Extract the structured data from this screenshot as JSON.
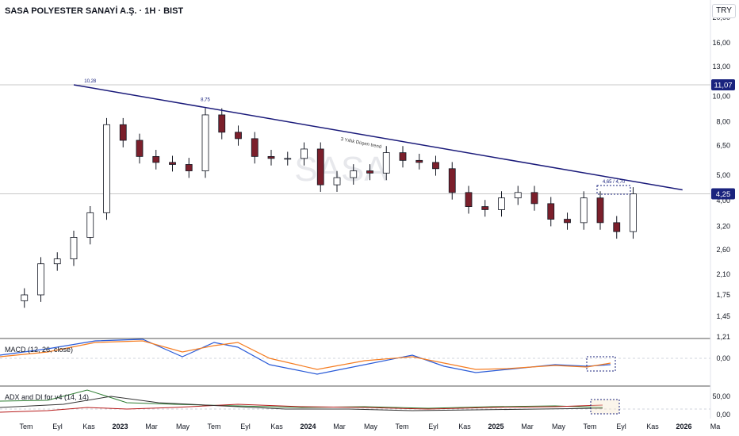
{
  "header": {
    "title": "SASA POLYESTER SANAYİ A.Ş. · 1H · BIST",
    "currency": "TRY"
  },
  "price_axis": {
    "ticks": [
      "20,00",
      "16,00",
      "13,00",
      "10,00",
      "8,00",
      "6,50",
      "5,00",
      "4,00",
      "3,20",
      "2,60",
      "2,10",
      "1,75",
      "1,45",
      "1,21"
    ],
    "marker_last": "4,25",
    "marker_upper": "11,07"
  },
  "time_axis": [
    "Tem",
    "Eyl",
    "Kas",
    "2023",
    "Mar",
    "May",
    "Tem",
    "Eyl",
    "Kas",
    "2024",
    "Mar",
    "May",
    "Tem",
    "Eyl",
    "Kas",
    "2025",
    "Mar",
    "May",
    "Tem",
    "Eyl",
    "Kas",
    "2026",
    "Ma"
  ],
  "annotations": {
    "peak1": "10,28",
    "peak2": "8,75",
    "trend_label": "3 Yıllık Düşen trend",
    "target_box": "4,65 / 4,70",
    "watermark": "SASA"
  },
  "macd": {
    "label": "MACD (12, 26, close)",
    "zero": "0,00"
  },
  "adx": {
    "label": "ADX and DI for v4 (14, 14)",
    "top": "50,00",
    "zero": "0,00"
  },
  "colors": {
    "up": "#ffffff",
    "down": "#7b1f2b",
    "trend": "#1a1a7a",
    "macd": "#2a5bd7",
    "signal": "#f57c20",
    "adx_plus": "#2e7d32",
    "adx_minus": "#b71c1c",
    "adx": "#333333"
  },
  "chart_data": {
    "type": "candlestick",
    "title": "SASA POLYESTER SANAYİ A.Ş. · 1H · BIST",
    "y_scale": "log",
    "ylim": [
      1.21,
      20.0
    ],
    "x_range": [
      "2022-06",
      "2026-03"
    ],
    "series": [
      {
        "name": "close",
        "x": [
          "2022-07",
          "2022-08",
          "2022-09",
          "2022-10",
          "2022-11",
          "2022-12",
          "2023-01",
          "2023-02",
          "2023-03",
          "2023-04",
          "2023-05",
          "2023-06",
          "2023-07",
          "2023-08",
          "2023-09",
          "2023-10",
          "2023-11",
          "2023-12",
          "2024-01",
          "2024-02",
          "2024-03",
          "2024-04",
          "2024-05",
          "2024-06",
          "2024-07",
          "2024-08",
          "2024-09",
          "2024-10",
          "2024-11",
          "2024-12",
          "2025-01",
          "2025-02",
          "2025-03",
          "2025-04",
          "2025-05",
          "2025-06",
          "2025-07",
          "2025-08"
        ],
        "values": [
          1.75,
          2.3,
          2.4,
          2.9,
          3.6,
          7.8,
          6.8,
          5.9,
          5.6,
          5.5,
          5.2,
          8.5,
          7.3,
          6.9,
          5.9,
          5.8,
          5.8,
          6.3,
          4.6,
          4.9,
          5.2,
          5.1,
          6.1,
          5.7,
          5.6,
          5.3,
          4.3,
          3.8,
          3.7,
          4.1,
          4.3,
          3.9,
          3.4,
          3.3,
          4.1,
          3.3,
          3.05,
          4.25
        ]
      }
    ],
    "trendline": {
      "from": {
        "x": "2022-10",
        "y": 11.07
      },
      "to": {
        "x": "2025-11",
        "y": 4.4
      },
      "label": "3 Yıllık Düşen trend"
    },
    "levels": [
      11.07,
      4.25
    ],
    "macd": {
      "label": "MACD (12, 26, close)"
    },
    "adx": {
      "label": "ADX and DI for v4 (14, 14)"
    }
  }
}
